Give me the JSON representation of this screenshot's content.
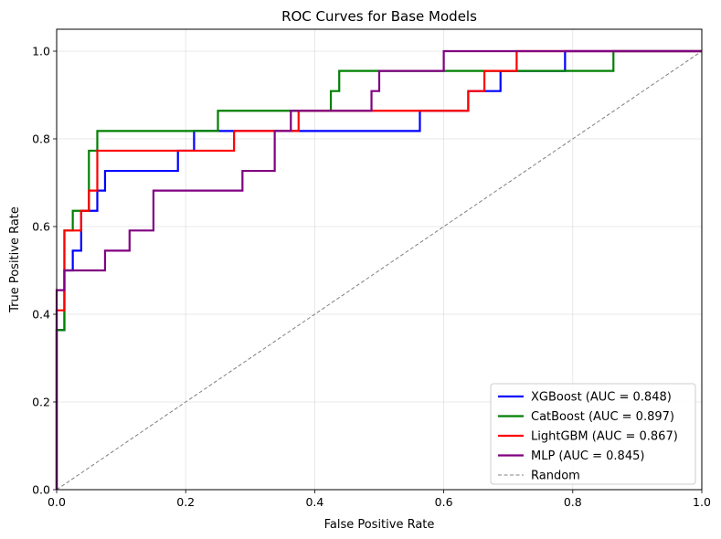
{
  "chart_data": {
    "type": "line",
    "title": "ROC Curves for Base Models",
    "xlabel": "False Positive Rate",
    "ylabel": "True Positive Rate",
    "xlim": [
      0,
      1
    ],
    "ylim": [
      0,
      1.05
    ],
    "xticks": [
      "0.0",
      "0.2",
      "0.4",
      "0.6",
      "0.8",
      "1.0"
    ],
    "yticks": [
      "0.0",
      "0.2",
      "0.4",
      "0.6",
      "0.8",
      "1.0"
    ],
    "grid": true,
    "legend_position": "lower-right",
    "series": [
      {
        "name": "XGBoost (AUC = 0.848)",
        "color": "#0000ff",
        "points": [
          [
            0,
            0
          ],
          [
            0,
            0.364
          ],
          [
            0.012,
            0.364
          ],
          [
            0.012,
            0.5
          ],
          [
            0.025,
            0.5
          ],
          [
            0.025,
            0.545
          ],
          [
            0.038,
            0.545
          ],
          [
            0.038,
            0.636
          ],
          [
            0.063,
            0.636
          ],
          [
            0.063,
            0.682
          ],
          [
            0.075,
            0.682
          ],
          [
            0.075,
            0.727
          ],
          [
            0.188,
            0.727
          ],
          [
            0.188,
            0.773
          ],
          [
            0.213,
            0.773
          ],
          [
            0.213,
            0.818
          ],
          [
            0.563,
            0.818
          ],
          [
            0.563,
            0.864
          ],
          [
            0.638,
            0.864
          ],
          [
            0.638,
            0.909
          ],
          [
            0.688,
            0.909
          ],
          [
            0.688,
            0.955
          ],
          [
            0.788,
            0.955
          ],
          [
            0.788,
            1.0
          ],
          [
            1,
            1
          ]
        ]
      },
      {
        "name": "CatBoost (AUC = 0.897)",
        "color": "#008000",
        "points": [
          [
            0,
            0
          ],
          [
            0,
            0.364
          ],
          [
            0.012,
            0.364
          ],
          [
            0.012,
            0.591
          ],
          [
            0.025,
            0.591
          ],
          [
            0.025,
            0.636
          ],
          [
            0.05,
            0.636
          ],
          [
            0.05,
            0.773
          ],
          [
            0.063,
            0.773
          ],
          [
            0.063,
            0.818
          ],
          [
            0.25,
            0.818
          ],
          [
            0.25,
            0.864
          ],
          [
            0.425,
            0.864
          ],
          [
            0.425,
            0.909
          ],
          [
            0.438,
            0.909
          ],
          [
            0.438,
            0.955
          ],
          [
            0.863,
            0.955
          ],
          [
            0.863,
            1.0
          ],
          [
            1,
            1
          ]
        ]
      },
      {
        "name": "LightGBM (AUC = 0.867)",
        "color": "#ff0000",
        "points": [
          [
            0,
            0
          ],
          [
            0,
            0.409
          ],
          [
            0.012,
            0.409
          ],
          [
            0.012,
            0.591
          ],
          [
            0.038,
            0.591
          ],
          [
            0.038,
            0.636
          ],
          [
            0.05,
            0.636
          ],
          [
            0.05,
            0.682
          ],
          [
            0.063,
            0.682
          ],
          [
            0.063,
            0.773
          ],
          [
            0.275,
            0.773
          ],
          [
            0.275,
            0.818
          ],
          [
            0.375,
            0.818
          ],
          [
            0.375,
            0.864
          ],
          [
            0.638,
            0.864
          ],
          [
            0.638,
            0.909
          ],
          [
            0.663,
            0.909
          ],
          [
            0.663,
            0.955
          ],
          [
            0.713,
            0.955
          ],
          [
            0.713,
            1.0
          ],
          [
            1,
            1
          ]
        ]
      },
      {
        "name": "MLP (AUC = 0.845)",
        "color": "#800080",
        "points": [
          [
            0,
            0
          ],
          [
            0,
            0.455
          ],
          [
            0.012,
            0.455
          ],
          [
            0.012,
            0.5
          ],
          [
            0.075,
            0.5
          ],
          [
            0.075,
            0.545
          ],
          [
            0.113,
            0.545
          ],
          [
            0.113,
            0.591
          ],
          [
            0.15,
            0.591
          ],
          [
            0.15,
            0.682
          ],
          [
            0.288,
            0.682
          ],
          [
            0.288,
            0.727
          ],
          [
            0.338,
            0.727
          ],
          [
            0.338,
            0.818
          ],
          [
            0.363,
            0.818
          ],
          [
            0.363,
            0.864
          ],
          [
            0.488,
            0.864
          ],
          [
            0.488,
            0.909
          ],
          [
            0.5,
            0.909
          ],
          [
            0.5,
            0.955
          ],
          [
            0.6,
            0.955
          ],
          [
            0.6,
            1.0
          ],
          [
            1,
            1
          ]
        ]
      },
      {
        "name": "Random",
        "color": "#808080",
        "dashed": true,
        "points": [
          [
            0,
            0
          ],
          [
            1,
            1
          ]
        ]
      }
    ]
  }
}
